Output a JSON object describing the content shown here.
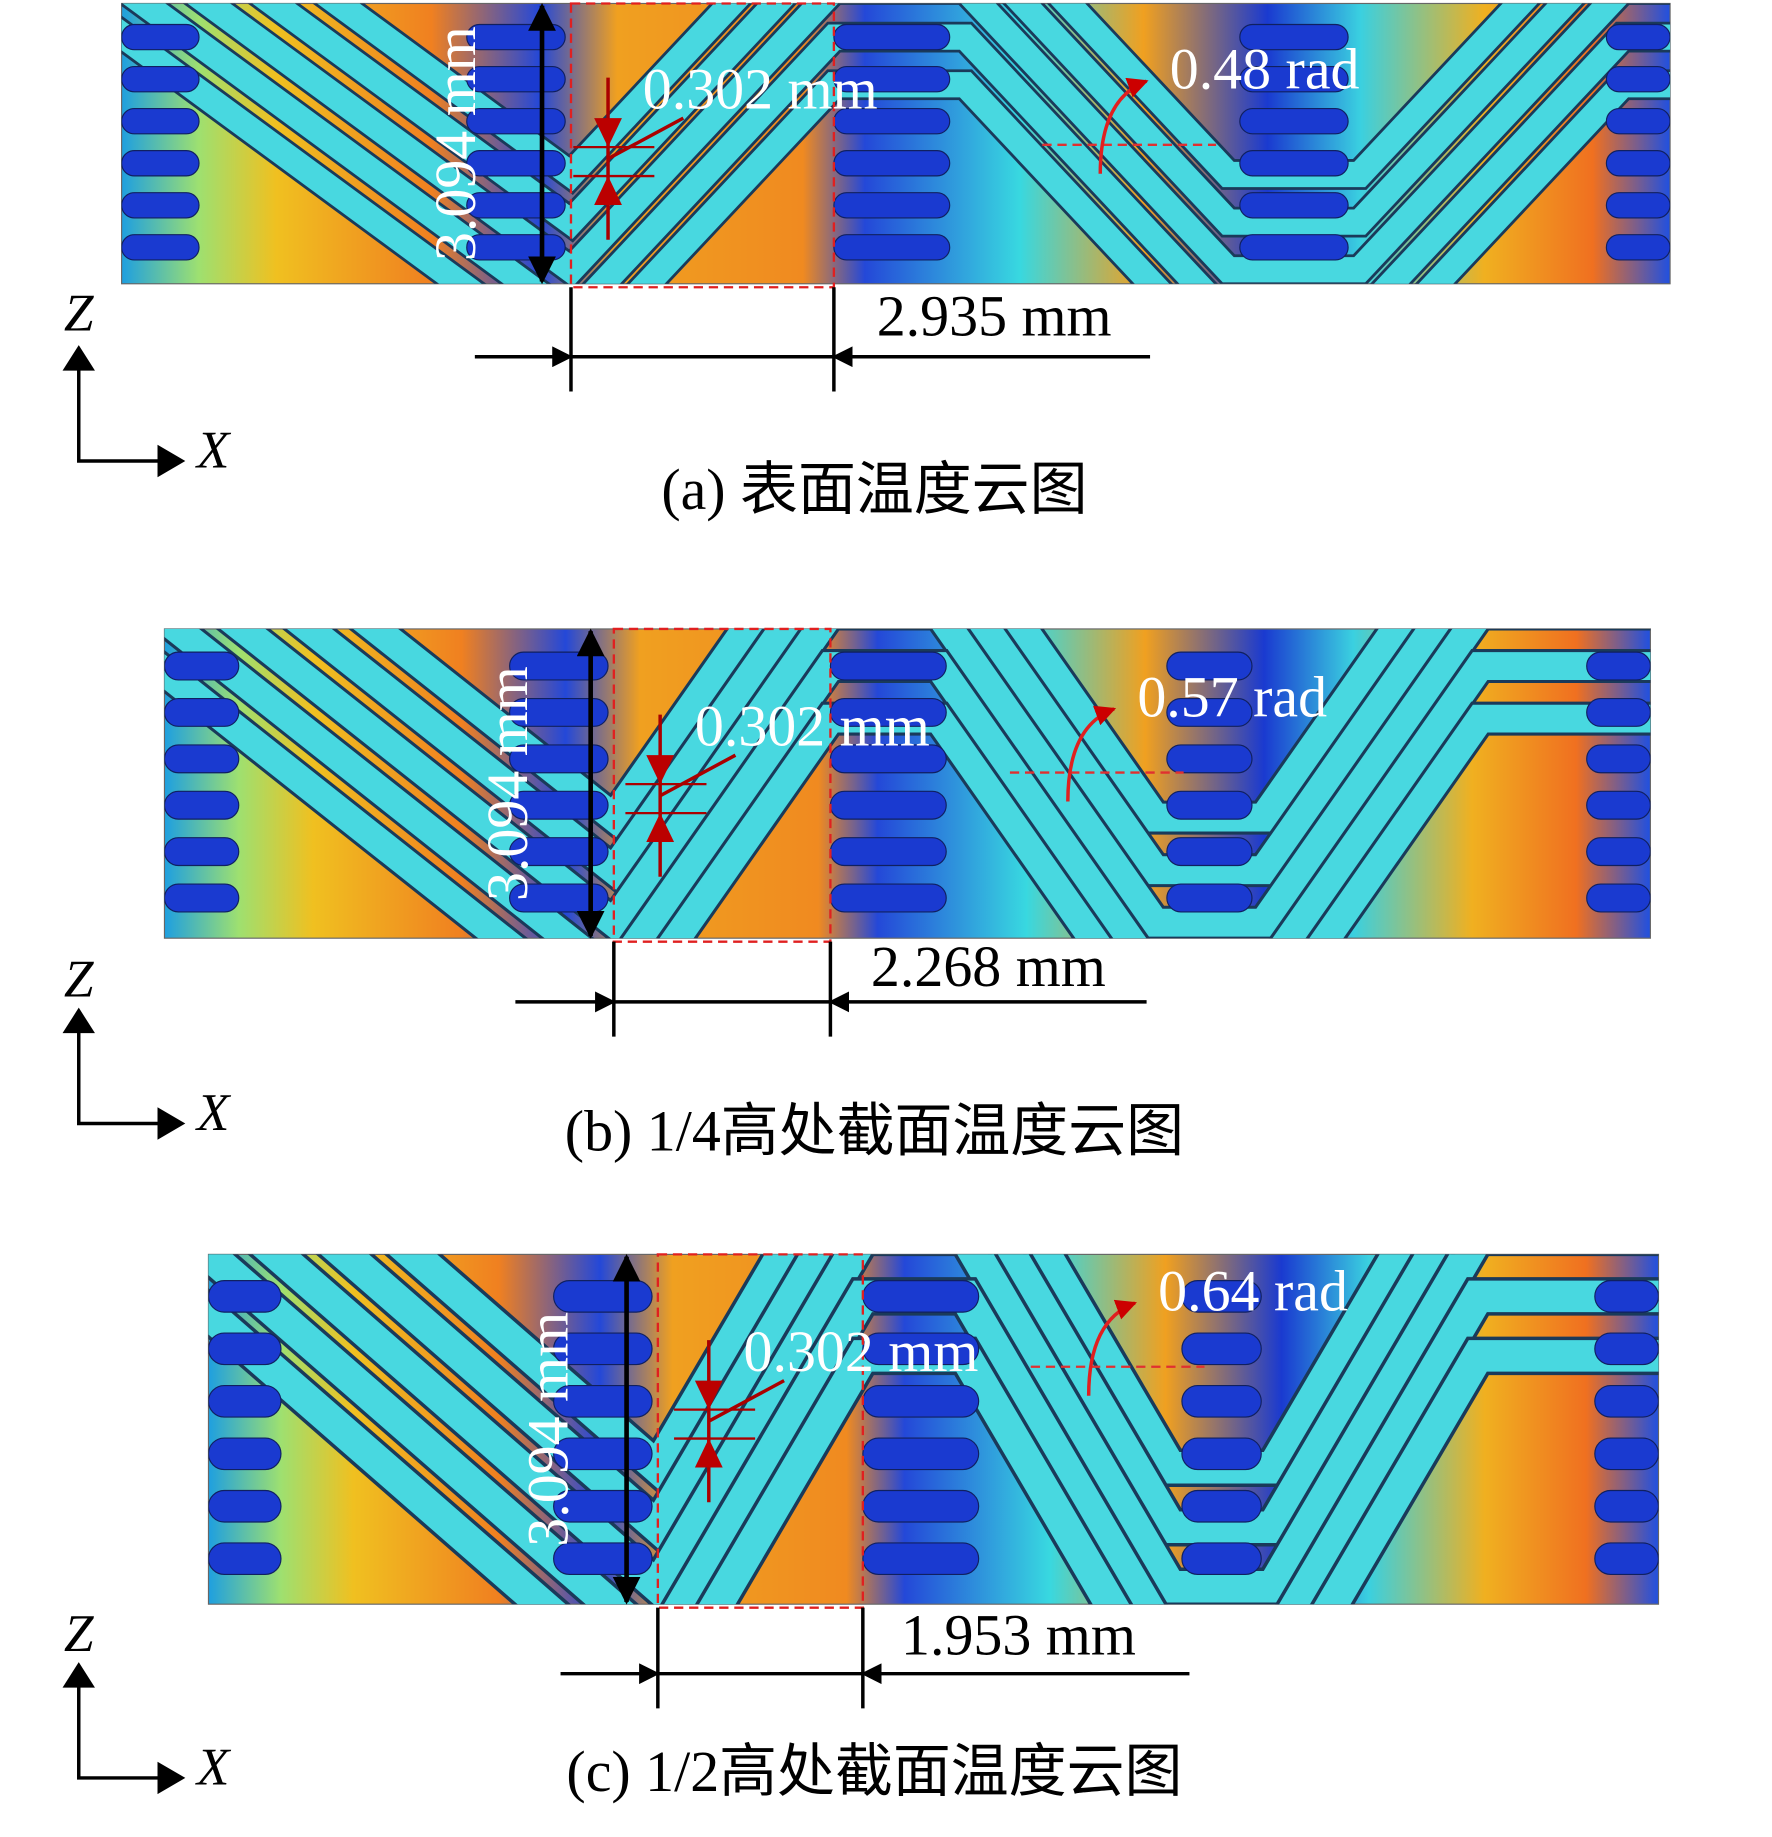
{
  "panels": [
    {
      "height": "3.094 mm",
      "thickness": "0.302 mm",
      "angle": "0.48 rad",
      "width": "2.935 mm",
      "axis_z": "Z",
      "axis_x": "X",
      "caption": "(a) 表面温度云图"
    },
    {
      "height": "3.094 mm",
      "thickness": "0.302 mm",
      "angle": "0.57 rad",
      "width": "2.268 mm",
      "axis_z": "Z",
      "axis_x": "X",
      "caption": "(b) 1/4高处截面温度云图"
    },
    {
      "height": "3.094 mm",
      "thickness": "0.302 mm",
      "angle": "0.64 rad",
      "width": "1.953 mm",
      "axis_z": "Z",
      "axis_x": "X",
      "caption": "(c) 1/2高处截面温度云图"
    }
  ]
}
